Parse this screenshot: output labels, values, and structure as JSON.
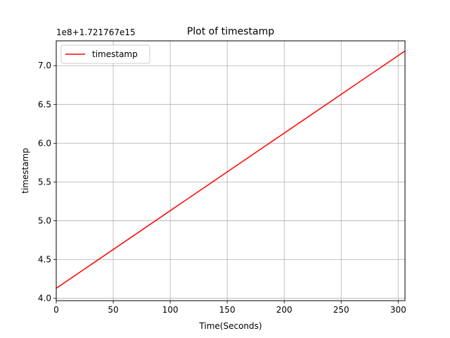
{
  "chart_data": {
    "type": "line",
    "title": "Plot of timestamp",
    "xlabel": "Time(Seconds)",
    "ylabel": "timestamp",
    "offset_label": "1e8+1.721767e15",
    "xlim": [
      0,
      306
    ],
    "ylim": [
      3.97,
      7.32
    ],
    "xticks": [
      0,
      50,
      100,
      150,
      200,
      250,
      300
    ],
    "xtick_labels": [
      "0",
      "50",
      "100",
      "150",
      "200",
      "250",
      "300"
    ],
    "yticks": [
      4.0,
      4.5,
      5.0,
      5.5,
      6.0,
      6.5,
      7.0
    ],
    "ytick_labels": [
      "4.0",
      "4.5",
      "5.0",
      "5.5",
      "6.0",
      "6.5",
      "7.0"
    ],
    "grid": true,
    "legend_position": "upper-left",
    "series": [
      {
        "name": "timestamp",
        "color": "#ff0000",
        "x": [
          0,
          306
        ],
        "y": [
          4.13,
          7.19
        ]
      }
    ]
  }
}
